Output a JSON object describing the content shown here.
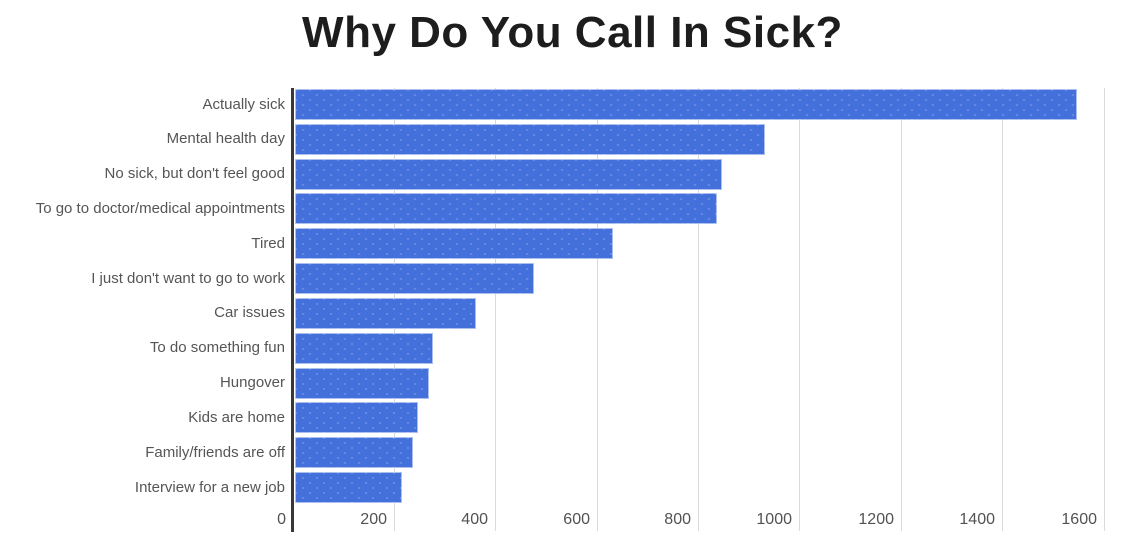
{
  "chart_data": {
    "type": "bar",
    "orientation": "horizontal",
    "title": "Why Do You Call In Sick?",
    "categories": [
      "Actually sick",
      "Mental health day",
      "No sick, but don't feel good",
      "To go to doctor/medical appointments",
      "Tired",
      "I just don't want to go to work",
      "Car issues",
      "To do something fun",
      "Hungover",
      "Kids are home",
      "Family/friends are off",
      "Interview for a new job"
    ],
    "values": [
      1545,
      930,
      845,
      835,
      630,
      475,
      360,
      275,
      268,
      245,
      235,
      215
    ],
    "xlabel": "",
    "ylabel": "",
    "xlim": [
      0,
      1600
    ],
    "x_ticks": [
      "0",
      "200",
      "400",
      "600",
      "800",
      "1000",
      "1200",
      "1400",
      "1600"
    ],
    "grid": "vertical",
    "legend": "none",
    "colors": {
      "bar": "#4470db",
      "grid": "#d9d9d9",
      "axis": "#383838",
      "labels": "#555555",
      "title": "#1d1d1d",
      "background": "#ffffff"
    }
  }
}
